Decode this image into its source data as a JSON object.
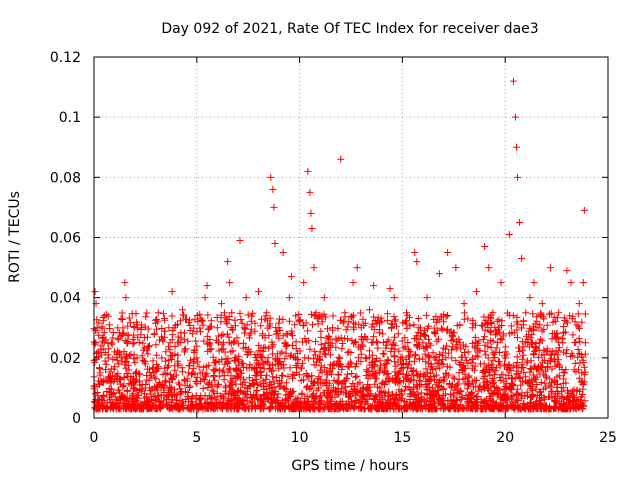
{
  "chart_data": {
    "type": "scatter",
    "title": "Day 092 of 2021, Rate Of TEC Index for receiver dae3",
    "xlabel": "GPS time / hours",
    "ylabel": "ROTI / TECUs",
    "xlim": [
      0,
      25
    ],
    "ylim": [
      0,
      0.12
    ],
    "xticks": [
      "0",
      "5",
      "10",
      "15",
      "20",
      "25"
    ],
    "yticks": [
      "0",
      "0.02",
      "0.04",
      "0.06",
      "0.08",
      "0.1",
      "0.12"
    ],
    "xtick_values": [
      0,
      5,
      10,
      15,
      20,
      25
    ],
    "ytick_values": [
      0,
      0.02,
      0.04,
      0.06,
      0.08,
      0.1,
      0.12
    ],
    "grid": true,
    "marker": "+",
    "color": "#ff0000",
    "series": [
      {
        "name": "ROTI",
        "x": [
          0.05,
          0.1,
          0.15,
          0.2,
          0.3,
          0.4,
          0.5,
          0.7,
          0.9,
          1.0,
          1.2,
          1.4,
          1.5,
          1.55,
          1.6,
          1.7,
          1.9,
          2.1,
          2.3,
          2.5,
          2.7,
          2.9,
          3.1,
          3.3,
          3.5,
          3.7,
          3.8,
          3.9,
          4.1,
          4.3,
          4.4,
          4.6,
          4.8,
          5.0,
          5.2,
          5.4,
          5.5,
          5.6,
          5.8,
          6.0,
          6.2,
          6.3,
          6.5,
          6.6,
          6.7,
          6.9,
          7.1,
          7.3,
          7.4,
          7.6,
          7.8,
          8.0,
          8.2,
          8.4,
          8.6,
          8.7,
          8.75,
          8.8,
          9.0,
          9.2,
          9.3,
          9.5,
          9.6,
          9.8,
          10.0,
          10.2,
          10.4,
          10.5,
          10.55,
          10.6,
          10.7,
          10.8,
          11.0,
          11.2,
          11.4,
          11.6,
          11.8,
          12.0,
          12.2,
          12.4,
          12.6,
          12.8,
          13.0,
          13.2,
          13.4,
          13.6,
          13.8,
          14.0,
          14.2,
          14.4,
          14.6,
          14.8,
          15.0,
          15.2,
          15.4,
          15.6,
          15.7,
          15.8,
          16.0,
          16.2,
          16.4,
          16.6,
          16.8,
          17.0,
          17.2,
          17.4,
          17.6,
          17.8,
          18.0,
          18.2,
          18.4,
          18.6,
          18.8,
          19.0,
          19.2,
          19.4,
          19.6,
          19.8,
          20.0,
          20.2,
          20.4,
          20.5,
          20.55,
          20.6,
          20.7,
          20.8,
          21.0,
          21.2,
          21.4,
          21.6,
          21.8,
          22.0,
          22.2,
          22.4,
          22.6,
          22.8,
          23.0,
          23.2,
          23.4,
          23.6,
          23.8,
          23.85,
          23.9
        ],
        "y": [
          0.042,
          0.038,
          0.03,
          0.022,
          0.015,
          0.012,
          0.034,
          0.02,
          0.014,
          0.022,
          0.018,
          0.028,
          0.045,
          0.04,
          0.025,
          0.016,
          0.012,
          0.02,
          0.03,
          0.018,
          0.024,
          0.015,
          0.032,
          0.02,
          0.012,
          0.025,
          0.042,
          0.03,
          0.018,
          0.036,
          0.022,
          0.015,
          0.028,
          0.02,
          0.033,
          0.04,
          0.044,
          0.025,
          0.016,
          0.03,
          0.038,
          0.025,
          0.052,
          0.045,
          0.035,
          0.02,
          0.059,
          0.03,
          0.04,
          0.022,
          0.016,
          0.042,
          0.028,
          0.035,
          0.08,
          0.076,
          0.07,
          0.058,
          0.03,
          0.055,
          0.025,
          0.04,
          0.047,
          0.02,
          0.032,
          0.045,
          0.082,
          0.075,
          0.068,
          0.063,
          0.05,
          0.035,
          0.022,
          0.04,
          0.025,
          0.03,
          0.018,
          0.086,
          0.035,
          0.022,
          0.045,
          0.05,
          0.03,
          0.02,
          0.036,
          0.044,
          0.025,
          0.032,
          0.018,
          0.043,
          0.04,
          0.028,
          0.02,
          0.035,
          0.022,
          0.055,
          0.052,
          0.03,
          0.025,
          0.04,
          0.018,
          0.028,
          0.048,
          0.032,
          0.055,
          0.02,
          0.05,
          0.025,
          0.038,
          0.022,
          0.03,
          0.042,
          0.018,
          0.057,
          0.05,
          0.035,
          0.028,
          0.045,
          0.022,
          0.061,
          0.112,
          0.1,
          0.09,
          0.08,
          0.065,
          0.053,
          0.035,
          0.04,
          0.045,
          0.03,
          0.038,
          0.022,
          0.05,
          0.028,
          0.035,
          0.025,
          0.049,
          0.045,
          0.032,
          0.038,
          0.045,
          0.069,
          0.025
        ]
      }
    ]
  }
}
